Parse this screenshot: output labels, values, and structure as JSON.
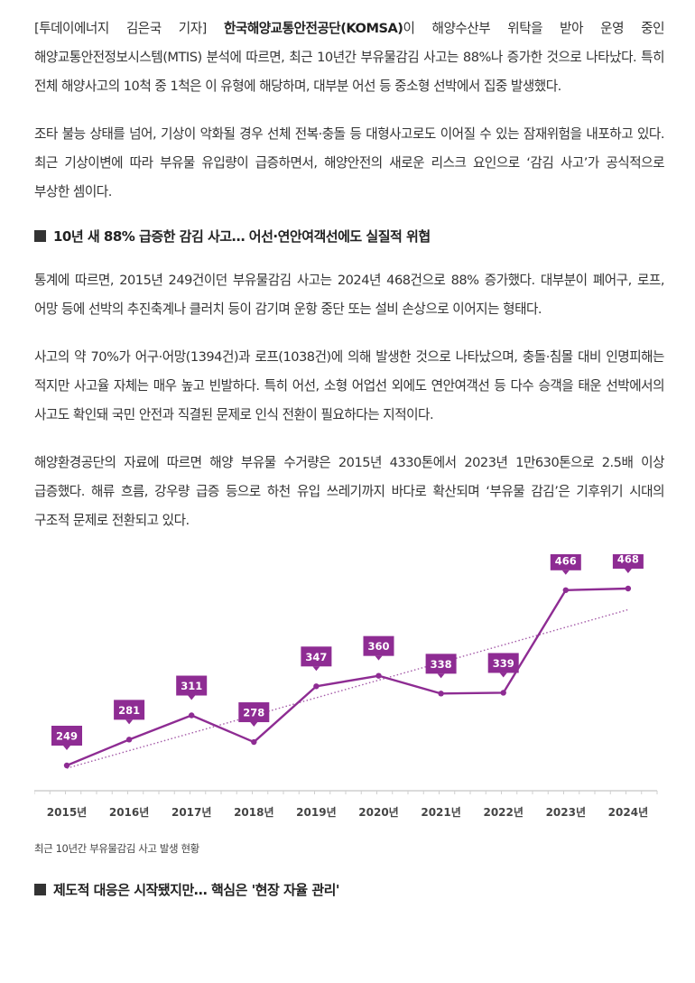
{
  "article": {
    "paragraphs": [
      {
        "prefix": "[투데이에너지 김은국 기자]  ",
        "bold": "한국해양교통안전공단(KOMSA)",
        "text": "이 해양수산부 위탁을 받아 운영 중인 해양교통안전정보시스템(MTIS) 분석에 따르면, 최근 10년간 부유물감김 사고는 88%나 증가한 것으로 나타났다. 특히 전체 해양사고의 10척 중 1척은 이 유형에 해당하며, 대부분 어선 등 중소형 선박에서 집중 발생했다."
      },
      {
        "text": "조타 불능 상태를 넘어, 기상이 악화될 경우 선체 전복·충돌 등 대형사고로도 이어질 수 있는 잠재위험을 내포하고 있다. 최근 기상이변에 따라 부유물 유입량이 급증하면서, 해양안전의 새로운 리스크 요인으로 ‘감김 사고’가 공식적으로 부상한 셈이다."
      }
    ],
    "subhead1": "10년 새 88% 급증한 감김 사고… 어선·연안여객선에도 실질적 위협",
    "paragraphs2": [
      "통계에 따르면, 2015년 249건이던 부유물감김 사고는 2024년 468건으로 88% 증가했다. 대부분이 폐어구, 로프, 어망 등에 선박의 추진축계나 클러치 등이 감기며 운항 중단 또는 설비 손상으로 이어지는 형태다.",
      "사고의 약 70%가 어구·어망(1394건)과 로프(1038건)에 의해 발생한 것으로 나타났으며, 충돌·침몰 대비 인명피해는 적지만 사고율 자체는 매우 높고 빈발하다. 특히 어선, 소형 어업선 외에도 연안여객선 등 다수 승객을 태운 선박에서의 사고도 확인돼 국민 안전과 직결된 문제로 인식 전환이 필요하다는 지적이다.",
      "해양환경공단의 자료에 따르면 해양 부유물 수거량은 2015년 4330톤에서 2023년 1만630톤으로 2.5배 이상 급증했다. 해류 흐름, 강우량 급증 등으로 하천 유입 쓰레기까지 바다로 확산되며 ‘부유물 감김’은 기후위기 시대의 구조적 문제로 전환되고 있다."
    ],
    "chart_caption": "최근 10년간 부유물감김 사고 발생 현황",
    "subhead2": "제도적 대응은 시작됐지만… 핵심은 '현장 자율 관리'"
  },
  "chart_data": {
    "type": "line",
    "categories": [
      "2015년",
      "2016년",
      "2017년",
      "2018년",
      "2019년",
      "2020년",
      "2021년",
      "2022년",
      "2023년",
      "2024년"
    ],
    "values": [
      249,
      281,
      311,
      278,
      347,
      360,
      338,
      339,
      466,
      468
    ],
    "ylim": [
      200,
      500
    ],
    "trendline": true,
    "data_labels": true,
    "grid": false,
    "colors": {
      "line": "#8e2c93",
      "label_bg": "#8e2c93",
      "label_text": "#ffffff",
      "trend": "#a45aa8",
      "axis": "#cfcfcf"
    }
  }
}
